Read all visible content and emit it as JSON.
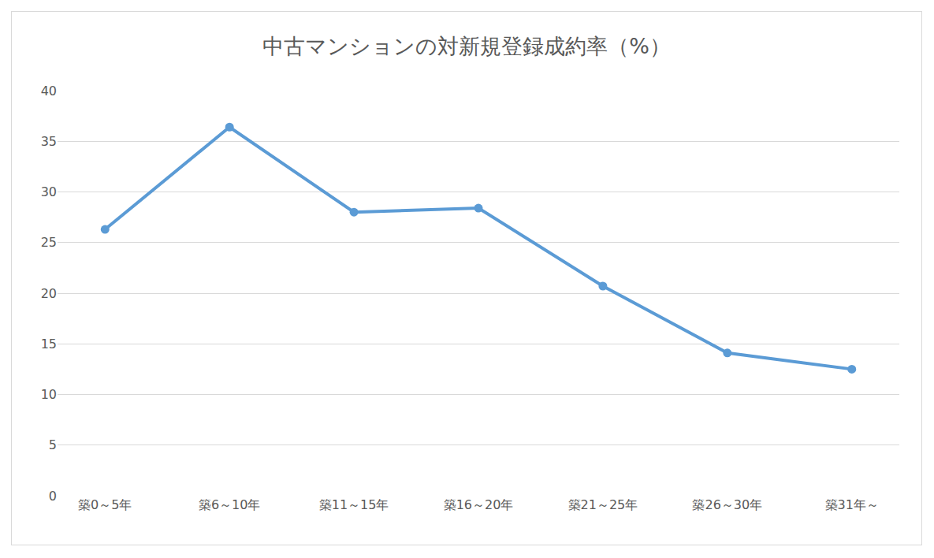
{
  "chart_data": {
    "type": "line",
    "title": "中古マンションの対新規登録成約率（%）",
    "categories": [
      "築0～5年",
      "築6～10年",
      "築11～15年",
      "築16～20年",
      "築21～25年",
      "築26～30年",
      "築31年～"
    ],
    "values": [
      26.3,
      36.4,
      28.0,
      28.4,
      20.7,
      14.1,
      12.5
    ],
    "color": "#5b9bd5",
    "marker": "circle",
    "ylim": [
      0,
      40
    ],
    "yticks": [
      0,
      5,
      10,
      15,
      20,
      25,
      30,
      35,
      40
    ],
    "grid": true
  }
}
